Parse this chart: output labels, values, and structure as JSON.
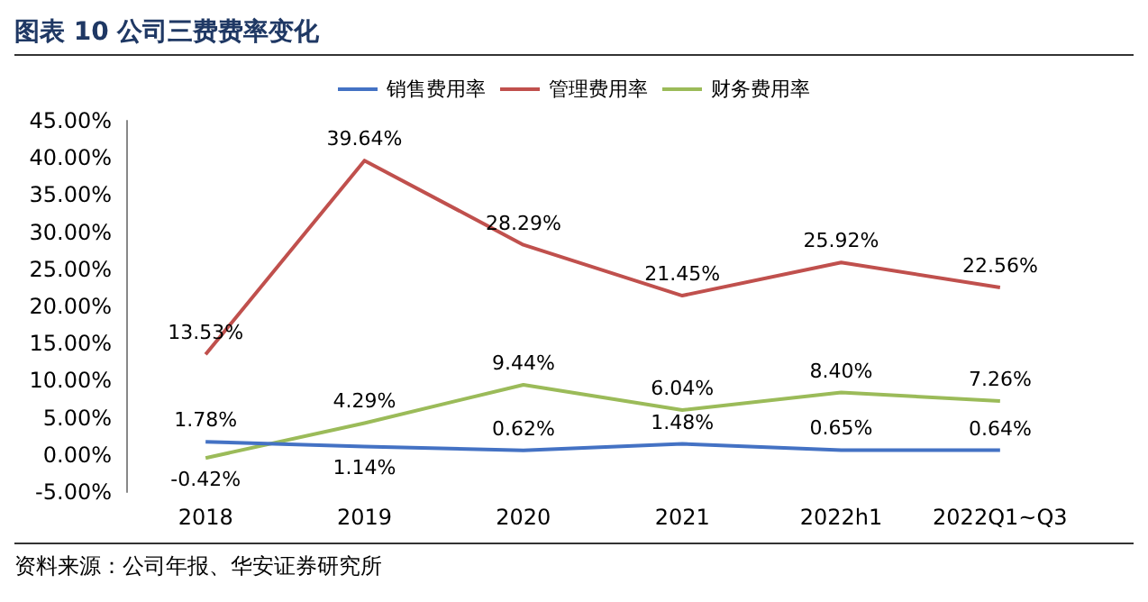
{
  "chart_data": {
    "type": "line",
    "title": "图表 10 公司三费费率变化",
    "annotations": [
      "资料来源：公司年报、华安证券研究所"
    ],
    "categories": [
      "2018",
      "2019",
      "2020",
      "2021",
      "2022h1",
      "2022Q1~Q3"
    ],
    "series": [
      {
        "name": "销售费用率",
        "color": "#4472c4",
        "values": [
          1.78,
          1.14,
          0.62,
          1.48,
          0.65,
          0.64
        ],
        "value_labels": [
          "1.78%",
          "1.14%",
          "0.62%",
          "1.48%",
          "0.65%",
          "0.64%"
        ]
      },
      {
        "name": "管理费用率",
        "color": "#c0504d",
        "values": [
          13.53,
          39.64,
          28.29,
          21.45,
          25.92,
          22.56
        ],
        "value_labels": [
          "13.53%",
          "39.64%",
          "28.29%",
          "21.45%",
          "25.92%",
          "22.56%"
        ]
      },
      {
        "name": "财务费用率",
        "color": "#9bbb59",
        "values": [
          -0.42,
          4.29,
          9.44,
          6.04,
          8.4,
          7.26
        ],
        "value_labels": [
          "-0.42%",
          "4.29%",
          "9.44%",
          "6.04%",
          "8.40%",
          "7.26%"
        ]
      }
    ],
    "ylim": [
      -5,
      45
    ],
    "yticks": [
      {
        "value": -5,
        "label": "-5.00%"
      },
      {
        "value": 0,
        "label": "0.00%"
      },
      {
        "value": 5,
        "label": "5.00%"
      },
      {
        "value": 10,
        "label": "10.00%"
      },
      {
        "value": 15,
        "label": "15.00%"
      },
      {
        "value": 20,
        "label": "20.00%"
      },
      {
        "value": 25,
        "label": "25.00%"
      },
      {
        "value": 30,
        "label": "30.00%"
      },
      {
        "value": 35,
        "label": "35.00%"
      },
      {
        "value": 40,
        "label": "40.00%"
      },
      {
        "value": 45,
        "label": "45.00%"
      }
    ],
    "grid": false,
    "legend": "top",
    "marker": "none",
    "line_style": "solid"
  }
}
